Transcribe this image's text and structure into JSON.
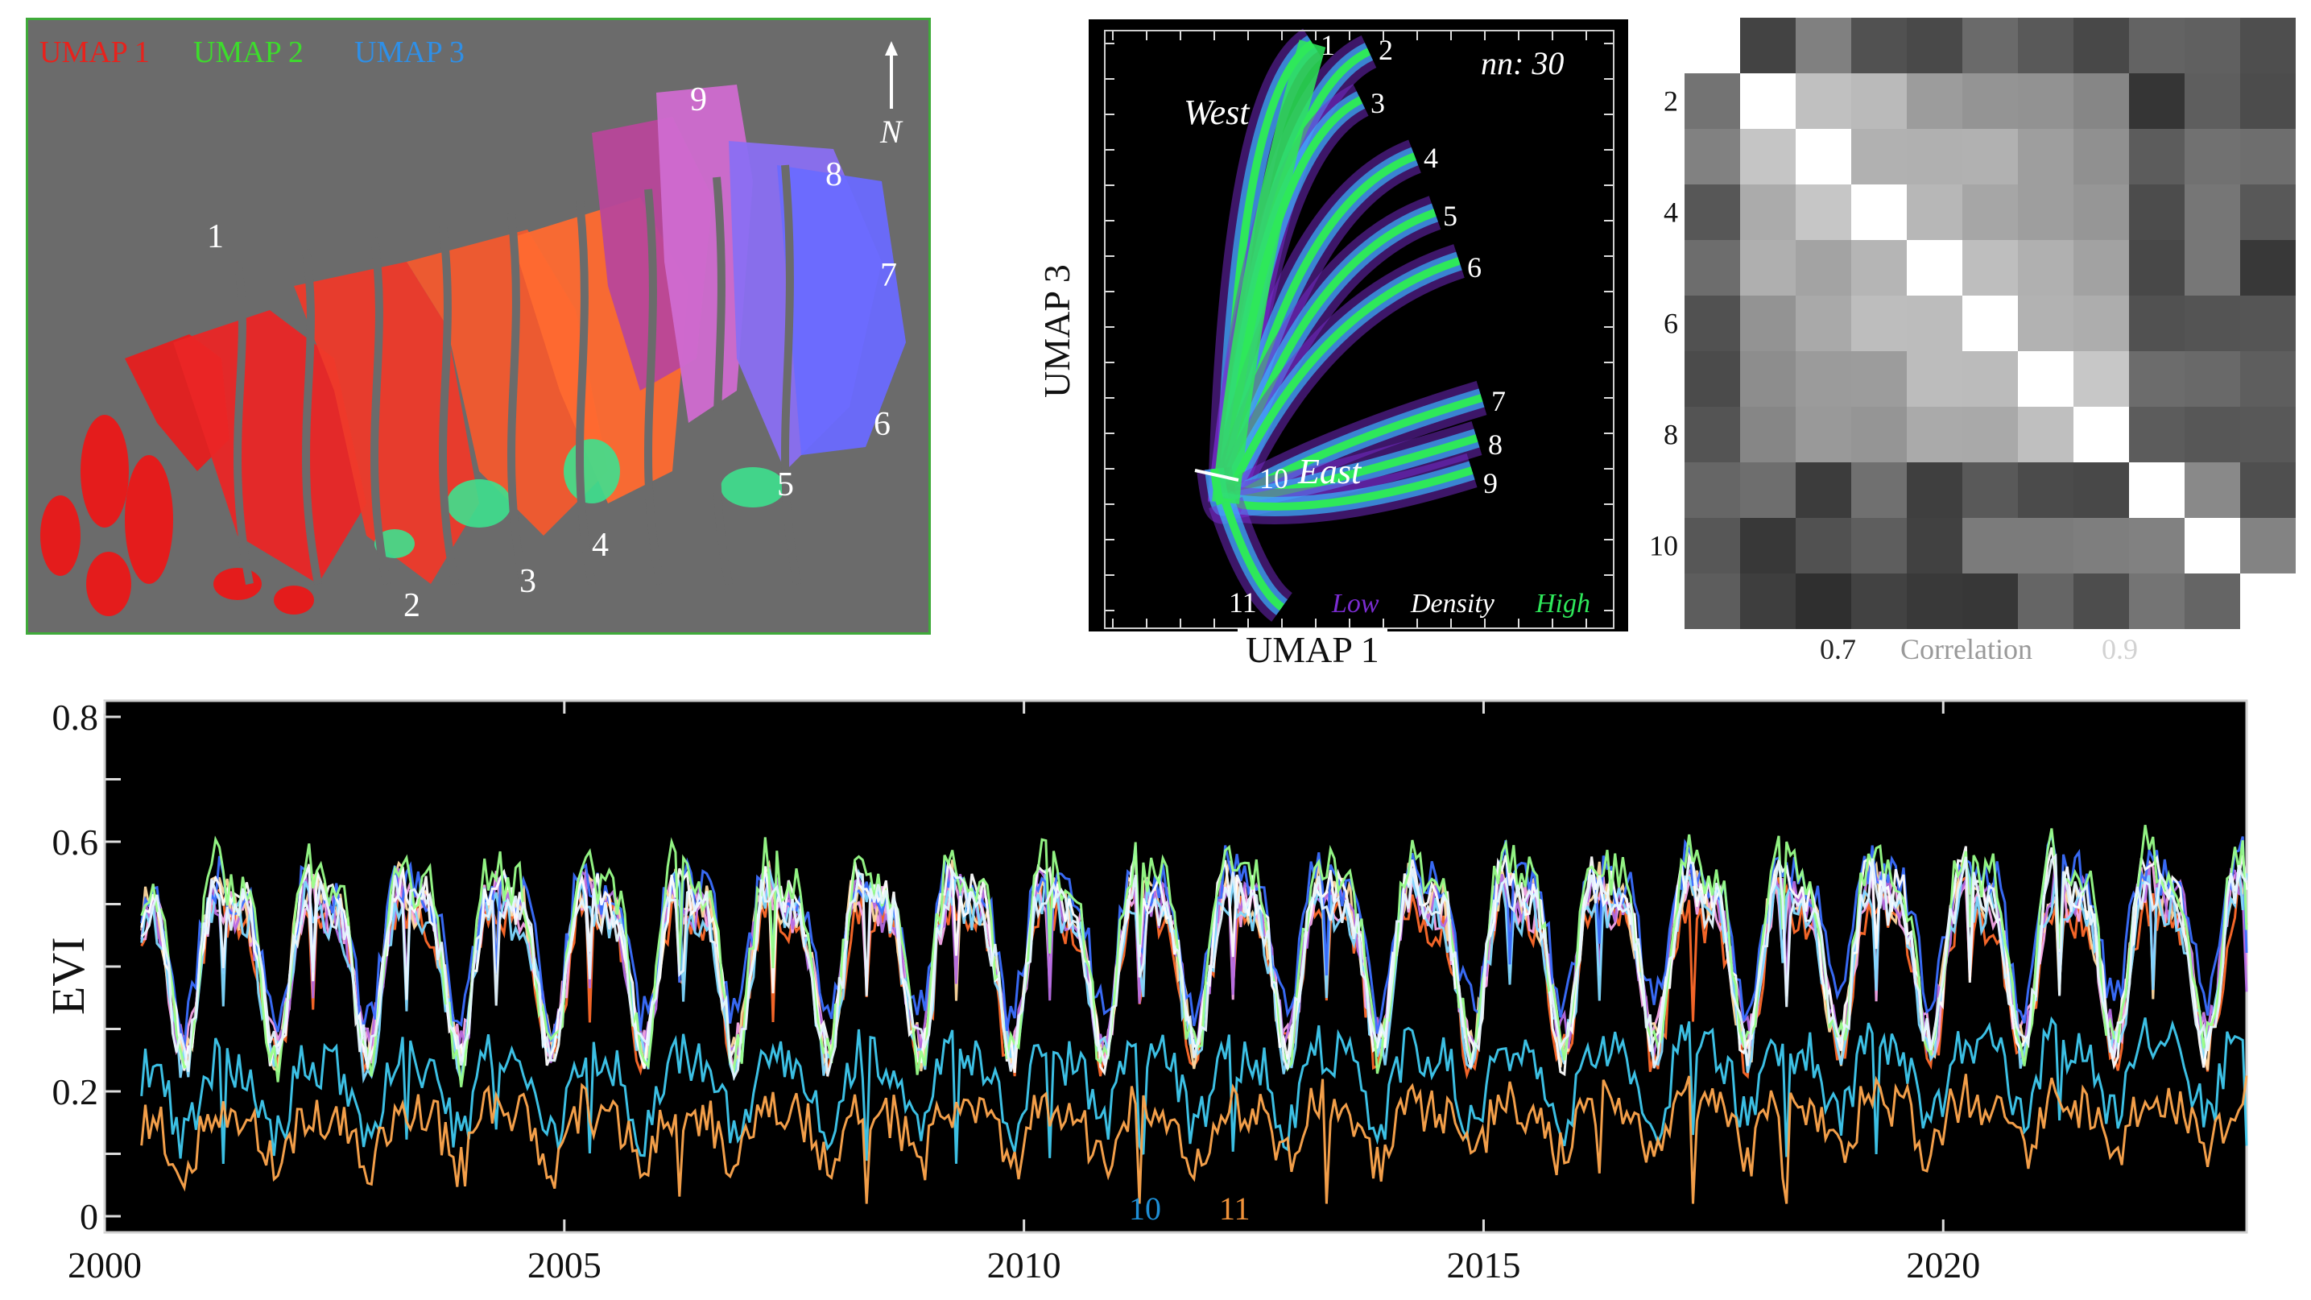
{
  "map_panel": {
    "legend": [
      {
        "label": "UMAP 1",
        "color": "#e8221c"
      },
      {
        "label": "UMAP 2",
        "color": "#3ddc2c"
      },
      {
        "label": "UMAP 3",
        "color": "#2f8fe6"
      }
    ],
    "north_label": "N",
    "region_labels": [
      "1",
      "2",
      "3",
      "4",
      "5",
      "6",
      "7",
      "8",
      "9"
    ]
  },
  "density_panel": {
    "annotation": "nn: 30",
    "xlabel": "UMAP 1",
    "ylabel": "UMAP 3",
    "west_label": "West",
    "east_label": "East",
    "branch_labels": [
      "1",
      "2",
      "3",
      "4",
      "5",
      "6",
      "7",
      "8",
      "9",
      "10",
      "11"
    ],
    "legend": {
      "low": "Low",
      "mid": "Density",
      "high": "High"
    },
    "colors": {
      "low": "#7a2cd0",
      "mid": "#ffffff",
      "high": "#2ee85a"
    }
  },
  "corr_panel": {
    "ytick_labels": [
      "2",
      "4",
      "6",
      "8",
      "10"
    ],
    "colorbar_low": "0.7",
    "colorbar_title": "Correlation",
    "colorbar_high": "0.9"
  },
  "chart_data": {
    "type": "line",
    "title": "",
    "xlabel": "",
    "ylabel": "EVI",
    "xlim": [
      2000,
      2023.3
    ],
    "ylim": [
      0,
      0.8
    ],
    "x_ticks": [
      2000,
      2005,
      2010,
      2015,
      2020
    ],
    "y_ticks": [
      0,
      0.2,
      0.6,
      0.8
    ],
    "y_tick_labels": [
      "0",
      "0.2",
      "0.6",
      "0.8"
    ],
    "series_legend": [
      {
        "name": "10",
        "color": "#1e8fd6"
      },
      {
        "name": "11",
        "color": "#f0923a"
      }
    ],
    "series": [
      {
        "name": "1",
        "color": "#ff6a2a",
        "base": 0.41,
        "amp": 0.14,
        "trend": 0.0
      },
      {
        "name": "2",
        "color": "#f6a6e8",
        "base": 0.42,
        "amp": 0.14,
        "trend": 0.02
      },
      {
        "name": "3",
        "color": "#ffd9a0",
        "base": 0.43,
        "amp": 0.15,
        "trend": 0.01
      },
      {
        "name": "4",
        "color": "#b56be0",
        "base": 0.42,
        "amp": 0.14,
        "trend": 0.03
      },
      {
        "name": "5",
        "color": "#7fd8ff",
        "base": 0.41,
        "amp": 0.15,
        "trend": 0.02
      },
      {
        "name": "6",
        "color": "#3b6fff",
        "base": 0.45,
        "amp": 0.13,
        "trend": 0.04
      },
      {
        "name": "7",
        "color": "#ffffff",
        "base": 0.43,
        "amp": 0.16,
        "trend": 0.02
      },
      {
        "name": "8",
        "color": "#9aff8a",
        "base": 0.44,
        "amp": 0.18,
        "trend": 0.03
      },
      {
        "name": "9",
        "color": "#e6f5ff",
        "base": 0.42,
        "amp": 0.15,
        "trend": 0.02
      },
      {
        "name": "10",
        "color": "#3fc9ef",
        "base": 0.2,
        "amp": 0.07,
        "trend": 0.04
      },
      {
        "name": "11",
        "color": "#ffa64d",
        "base": 0.13,
        "amp": 0.05,
        "trend": 0.03
      }
    ]
  }
}
